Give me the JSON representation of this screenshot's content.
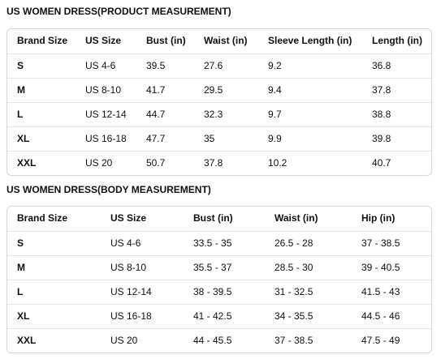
{
  "tables": [
    {
      "title": "US WOMEN DRESS(PRODUCT MEASUREMENT)",
      "header": [
        "Brand Size",
        "US Size",
        "Bust (in)",
        "Waist (in)",
        "Sleeve Length (in)",
        "Length (in)"
      ],
      "rows": [
        [
          "S",
          "US 4-6",
          "39.5",
          "27.6",
          "9.2",
          "36.8"
        ],
        [
          "M",
          "US 8-10",
          "41.7",
          "29.5",
          "9.4",
          "37.8"
        ],
        [
          "L",
          "US 12-14",
          "44.7",
          "32.3",
          "9.7",
          "38.8"
        ],
        [
          "XL",
          "US 16-18",
          "47.7",
          "35",
          "9.9",
          "39.8"
        ],
        [
          "XXL",
          "US 20",
          "50.7",
          "37.8",
          "10.2",
          "40.7"
        ]
      ]
    },
    {
      "title": "US WOMEN DRESS(BODY MEASUREMENT)",
      "header": [
        "Brand Size",
        "US Size",
        "Bust (in)",
        "Waist (in)",
        "Hip (in)"
      ],
      "rows": [
        [
          "S",
          "US 4-6",
          "33.5 - 35",
          "26.5 - 28",
          "37 - 38.5"
        ],
        [
          "M",
          "US 8-10",
          "35.5 - 37",
          "28.5 - 30",
          "39 - 40.5"
        ],
        [
          "L",
          "US 12-14",
          "38 - 39.5",
          "31 - 32.5",
          "41.5 - 43"
        ],
        [
          "XL",
          "US 16-18",
          "41 - 42.5",
          "34 - 35.5",
          "44.5 - 46"
        ],
        [
          "XXL",
          "US 20",
          "44 - 45.5",
          "37 - 38.5",
          "47.5 - 49"
        ]
      ]
    }
  ]
}
